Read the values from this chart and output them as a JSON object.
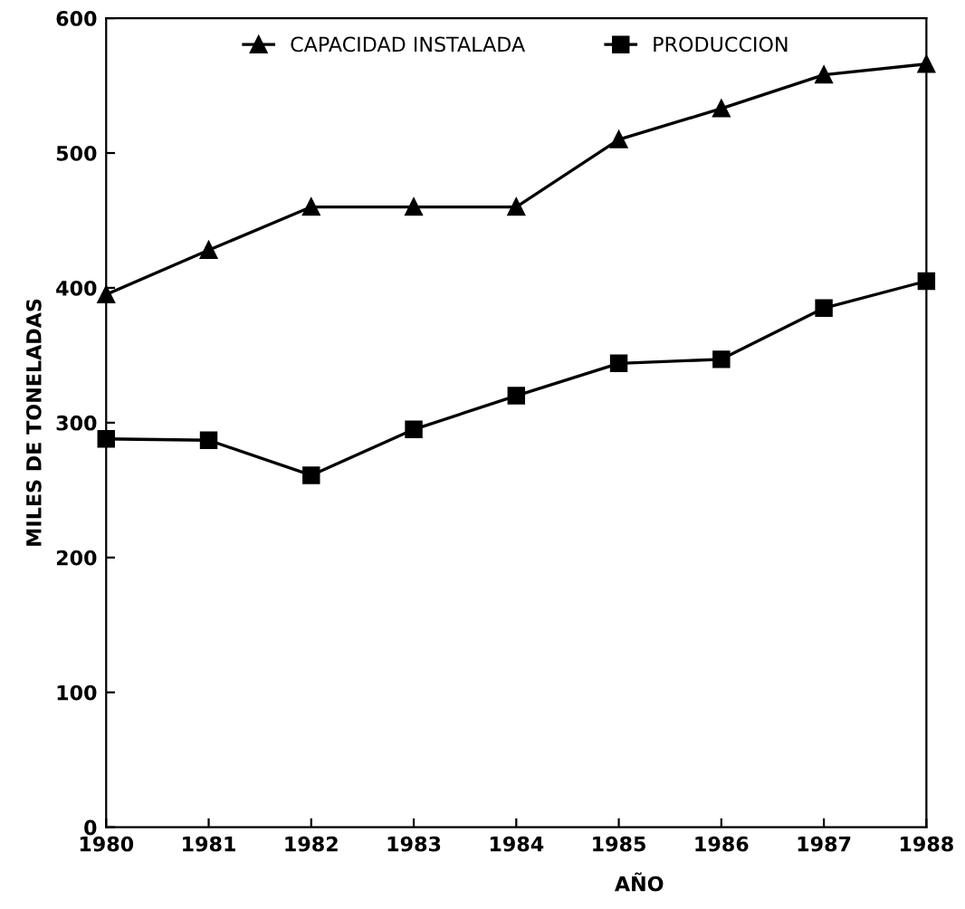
{
  "chart_data": {
    "type": "line",
    "xlabel": "AÑO",
    "ylabel": "MILES DE TONELADAS",
    "x": [
      1980,
      1981,
      1982,
      1983,
      1984,
      1985,
      1986,
      1987,
      1988
    ],
    "series": [
      {
        "name": "CAPACIDAD INSTALADA",
        "color": "#000000",
        "marker": "triangle",
        "values": [
          395,
          428,
          460,
          460,
          460,
          510,
          533,
          558,
          566
        ]
      },
      {
        "name": "PRODUCCION",
        "color": "#000000",
        "marker": "square",
        "values": [
          288,
          287,
          261,
          295,
          320,
          344,
          347,
          385,
          405
        ]
      }
    ],
    "xlim": [
      1980,
      1988
    ],
    "xticks": [
      1980,
      1981,
      1982,
      1983,
      1984,
      1985,
      1986,
      1987,
      1988
    ],
    "ylim": [
      0,
      600
    ],
    "yticks": [
      0,
      100,
      200,
      300,
      400,
      500,
      600
    ],
    "grid": false,
    "legend": "top",
    "line_style": "solid"
  }
}
